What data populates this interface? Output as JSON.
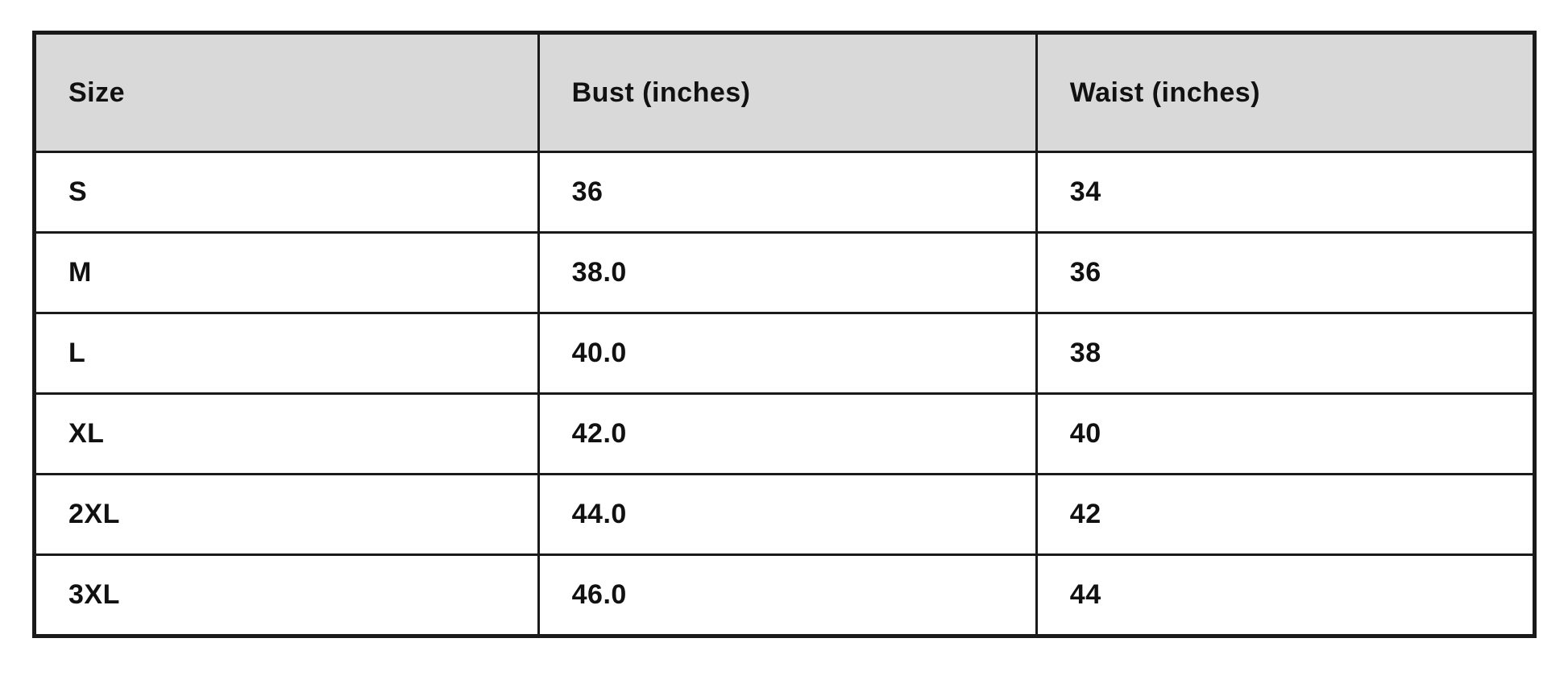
{
  "table": {
    "name": "size-chart",
    "columns": [
      "Size",
      "Bust (inches)",
      "Waist (inches)"
    ],
    "rows": [
      [
        "S",
        "36",
        "34"
      ],
      [
        "M",
        "38.0",
        "36"
      ],
      [
        "L",
        "40.0",
        "38"
      ],
      [
        "XL",
        "42.0",
        "40"
      ],
      [
        "2XL",
        "44.0",
        "42"
      ],
      [
        "3XL",
        "46.0",
        "44"
      ]
    ]
  },
  "chart_data": {
    "type": "table",
    "title": "",
    "columns": [
      "Size",
      "Bust (inches)",
      "Waist (inches)"
    ],
    "rows": [
      {
        "size": "S",
        "bust_inches": "36",
        "waist_inches": "34"
      },
      {
        "size": "M",
        "bust_inches": "38.0",
        "waist_inches": "36"
      },
      {
        "size": "L",
        "bust_inches": "40.0",
        "waist_inches": "38"
      },
      {
        "size": "XL",
        "bust_inches": "42.0",
        "waist_inches": "40"
      },
      {
        "size": "2XL",
        "bust_inches": "44.0",
        "waist_inches": "42"
      },
      {
        "size": "3XL",
        "bust_inches": "46.0",
        "waist_inches": "44"
      }
    ]
  },
  "colors": {
    "header_background": "#d9d9d9",
    "row_background": "#ffffff",
    "border": "#1a1a1a",
    "text": "#111111",
    "page_background": "#ffffff"
  }
}
